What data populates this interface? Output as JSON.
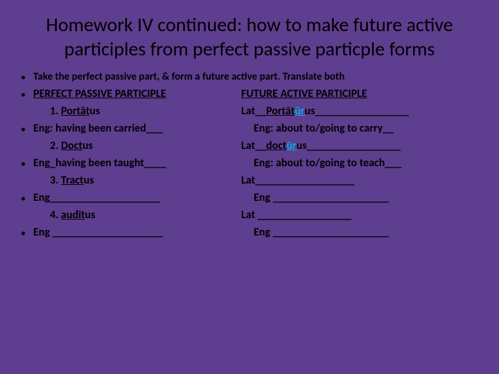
{
  "title": "Homework IV continued: how to make future active participles from perfect passive particple forms",
  "instruction": "Take the perfect passive part, & form a future active part. Translate both",
  "header_left": "PERFECT PASSIVE PARTICIPLE",
  "header_right": "FUTURE ACTIVE PARTICIPLE",
  "r1_left_num": "1. ",
  "r1_left_root": "Portāt",
  "r1_left_end": "us",
  "r1_right_pre": "Lat__",
  "r1_right_root": "Portāt",
  "r1_right_ur": "ūr",
  "r1_right_end": "us",
  "r1_right_tail": "_________________",
  "r2_left": "Eng:  having been carried___",
  "r2_right": "Eng: about to/going to carry__",
  "r3_left_num": "2.  ",
  "r3_left_root": "Doct",
  "r3_left_end": "us",
  "r3_right_pre": "Lat__",
  "r3_right_root": "doct",
  "r3_right_ur": "ūr",
  "r3_right_end": "us",
  "r3_right_tail": "_________________",
  "r4_left": "Eng_having been taught____",
  "r4_right": "Eng: about to/going to teach___",
  "r5_left_num": "3. ",
  "r5_left_root": "Tract",
  "r5_left_end": "us",
  "r5_right": "Lat__________________",
  "r6_left": "Eng____________________",
  "r6_right": "Eng _____________________",
  "r7_left_num": "4. ",
  "r7_left_root": "audīt",
  "r7_left_end": "us",
  "r7_right": "Lat _________________",
  "r8_left": "Eng ____________________",
  "r8_right": "Eng _____________________"
}
